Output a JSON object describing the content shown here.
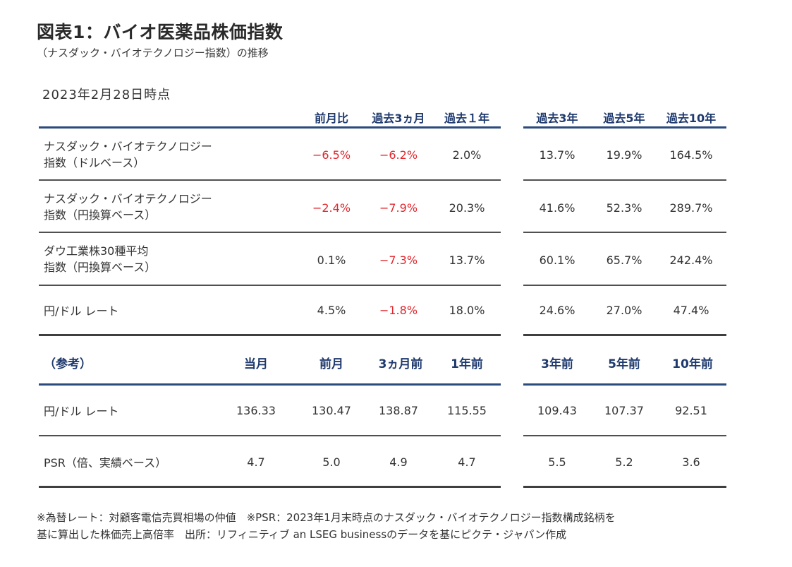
{
  "title": "図表1：バイオ医薬品株価指数",
  "subtitle": "（ナスダック・バイオテクノロジー指数）の推移",
  "as_of": "2023年2月28日時点",
  "columns": [
    "前月比",
    "過去3ヵ月",
    "過去１年",
    "過去3年",
    "過去5年",
    "過去10年"
  ],
  "rows": [
    {
      "label1": "ナスダック・バイオテクノロジー",
      "label2": "指数（ドルベース）",
      "values": [
        "−6.5%",
        "−6.2%",
        "2.0%",
        "13.7%",
        "19.9%",
        "164.5%"
      ]
    },
    {
      "label1": "ナスダック・バイオテクノロジー",
      "label2": "指数（円換算ベース）",
      "values": [
        "−2.4%",
        "−7.9%",
        "20.3%",
        "41.6%",
        "52.3%",
        "289.7%"
      ]
    },
    {
      "label1": "ダウ工業株30種平均",
      "label2": "指数（円換算ベース）",
      "values": [
        "0.1%",
        "−7.3%",
        "13.7%",
        "60.1%",
        "65.7%",
        "242.4%"
      ]
    },
    {
      "label1": "円/ドル レート",
      "label2": "",
      "values": [
        "4.5%",
        "−1.8%",
        "18.0%",
        "24.6%",
        "27.0%",
        "47.4%"
      ]
    }
  ],
  "ref_label": "（参考）",
  "ref_columns": [
    "当月",
    "前月",
    "3ヵ月前",
    "1年前",
    "3年前",
    "5年前",
    "10年前"
  ],
  "ref_rows": [
    {
      "label": "円/ドル レート",
      "values": [
        "136.33",
        "130.47",
        "138.87",
        "115.55",
        "109.43",
        "107.37",
        "92.51"
      ]
    },
    {
      "label": "PSR（倍、実績ベース）",
      "values": [
        "4.7",
        "5.0",
        "4.9",
        "4.7",
        "5.5",
        "5.2",
        "3.6"
      ]
    }
  ],
  "notes": [
    "※為替レート：対顧客電信売買相場の仲値　※PSR：2023年1月末時点のナスダック・バイオテクノロジー指数構成銘柄を",
    "基に算出した株価売上高倍率　出所：リフィニティブ an LSEG businessのデータを基にピクテ・ジャパン作成"
  ],
  "colors": {
    "header": "#1f3a6e",
    "negative": "#e0262d",
    "rule_blue": "#2b4b7e"
  }
}
